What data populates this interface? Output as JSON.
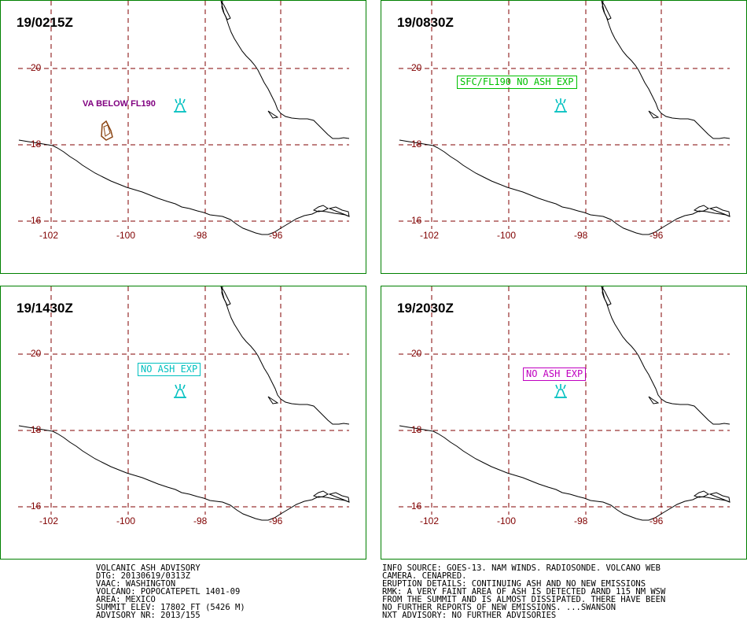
{
  "panels": [
    {
      "id": "p1",
      "title": "19/0215Z",
      "annotation": {
        "text": "VA BELOW FL190",
        "color": "#800080",
        "boxed": false
      },
      "ash_area": true
    },
    {
      "id": "p2",
      "title": "19/0830Z",
      "annotation": {
        "text": "SFC/FL190 NO ASH EXP",
        "color": "#00c000",
        "boxed": true
      },
      "ash_area": false
    },
    {
      "id": "p3",
      "title": "19/1430Z",
      "annotation": {
        "text": "NO ASH EXP",
        "color": "#00c0c0",
        "boxed": true
      },
      "ash_area": false
    },
    {
      "id": "p4",
      "title": "19/2030Z",
      "annotation": {
        "text": "NO ASH EXP",
        "color": "#c000c0",
        "boxed": true
      },
      "ash_area": false
    }
  ],
  "axes": {
    "lat_labels": [
      "20",
      "18",
      "16"
    ],
    "lon_labels": [
      "-102",
      "-100",
      "-98",
      "-96"
    ],
    "grid_color": "#800000",
    "label_color": "#800000"
  },
  "volcano_symbol_color": "#00c0c0",
  "ash_area_color": "#8b4513",
  "coastline_color": "#000000",
  "frame_color": "#008000",
  "advisory_left": [
    "VOLCANIC ASH ADVISORY",
    "DTG: 20130619/0313Z",
    "VAAC: WASHINGTON",
    "VOLCANO: POPOCATEPETL 1401-09",
    "AREA: MEXICO",
    "SUMMIT ELEV: 17802 FT (5426 M)",
    "ADVISORY NR: 2013/155"
  ],
  "advisory_right": [
    "INFO SOURCE: GOES-13. NAM WINDS. RADIOSONDE. VOLCANO WEB",
    "CAMERA. CENAPRED.",
    "ERUPTION DETAILS: CONTINUING ASH AND NO NEW EMISSIONS",
    "RMK: A VERY FAINT AREA OF ASH IS DETECTED ARND 115 NM WSW",
    "FROM THE SUMMIT AND IS ALMOST DISSIPATED. THERE HAVE BEEN",
    "NO FURTHER REPORTS OF NEW EMISSIONS. ...SWANSON",
    "NXT ADVISORY: NO FURTHER ADVISORIES"
  ]
}
